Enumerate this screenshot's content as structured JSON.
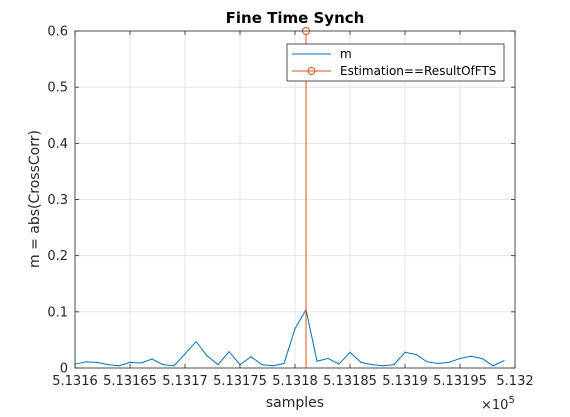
{
  "chart_data": {
    "type": "line",
    "title": "Fine Time Synch",
    "xlabel": "samples",
    "ylabel": "m = abs(CrossCorr)",
    "x_exponent_label": "×10",
    "x_exponent_power": "5",
    "xlim": [
      513160,
      513200
    ],
    "ylim": [
      0,
      0.6
    ],
    "grid": true,
    "legend_position": "top-right",
    "x_ticks": [
      513160,
      513165,
      513170,
      513175,
      513180,
      513185,
      513190,
      513195,
      513200
    ],
    "x_tick_labels": [
      "5.1316",
      "5.13165",
      "5.1317",
      "5.13175",
      "5.1318",
      "5.13185",
      "5.1319",
      "5.13195",
      "5.132"
    ],
    "y_ticks": [
      0,
      0.1,
      0.2,
      0.3,
      0.4,
      0.5,
      0.6
    ],
    "y_tick_labels": [
      "0",
      "0.1",
      "0.2",
      "0.3",
      "0.4",
      "0.5",
      "0.6"
    ],
    "series": [
      {
        "name": "m",
        "color": "#0072BD",
        "style": "line",
        "x": [
          513160,
          513161,
          513162,
          513163,
          513164,
          513165,
          513166,
          513167,
          513168,
          513169,
          513170,
          513171,
          513172,
          513173,
          513174,
          513175,
          513176,
          513177,
          513178,
          513179,
          513180,
          513181,
          513182,
          513183,
          513184,
          513185,
          513186,
          513187,
          513188,
          513189,
          513190,
          513191,
          513192,
          513193,
          513194,
          513195,
          513196,
          513197,
          513198,
          513199
        ],
        "y": [
          0.007,
          0.011,
          0.01,
          0.006,
          0.004,
          0.01,
          0.009,
          0.016,
          0.006,
          0.004,
          0.025,
          0.047,
          0.022,
          0.006,
          0.029,
          0.006,
          0.02,
          0.006,
          0.004,
          0.008,
          0.07,
          0.104,
          0.012,
          0.017,
          0.007,
          0.028,
          0.01,
          0.006,
          0.004,
          0.006,
          0.028,
          0.024,
          0.011,
          0.008,
          0.01,
          0.017,
          0.021,
          0.017,
          0.004,
          0.013
        ]
      },
      {
        "name": "Estimation==ResultOfFTS",
        "color": "#D95319",
        "style": "stem",
        "x": [
          513181
        ],
        "y": [
          0.6
        ]
      }
    ]
  }
}
